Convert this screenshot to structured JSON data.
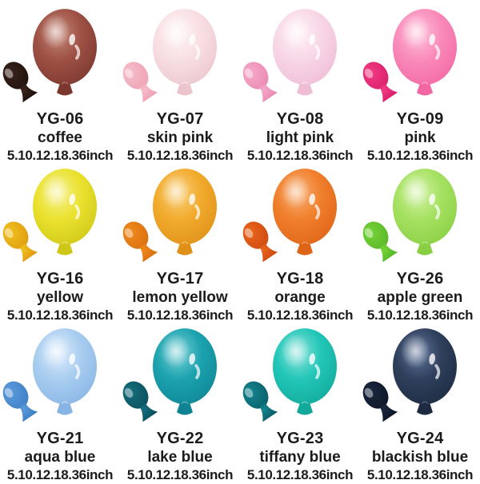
{
  "page": {
    "background": "#ffffff",
    "text_color": "#1b1b1b"
  },
  "catalog": {
    "items": [
      {
        "code": "YG-06",
        "name": "coffee",
        "sizes": "5.10.12.18.36inch",
        "colors": {
          "body": "#9e5144",
          "edge": "#7b372e",
          "glow": "#c4897a",
          "small": "#3a231d",
          "small_edge": "#20110c"
        }
      },
      {
        "code": "YG-07",
        "name": "skin pink",
        "sizes": "5.10.12.18.36inch",
        "colors": {
          "body": "#f8dfe4",
          "edge": "#ecc4ce",
          "glow": "#fef5f6",
          "small": "#f7bec9",
          "small_edge": "#eda2b4"
        }
      },
      {
        "code": "YG-08",
        "name": "light pink",
        "sizes": "5.10.12.18.36inch",
        "colors": {
          "body": "#f8d7e6",
          "edge": "#efbcd6",
          "glow": "#fef2f7",
          "small": "#f5a9c8",
          "small_edge": "#eb8ab4"
        }
      },
      {
        "code": "YG-09",
        "name": "pink",
        "sizes": "5.10.12.18.36inch",
        "colors": {
          "body": "#f98bbb",
          "edge": "#f266a2",
          "glow": "#fdc3da",
          "small": "#f23a85",
          "small_edge": "#d81f6b"
        }
      },
      {
        "code": "YG-16",
        "name": "yellow",
        "sizes": "5.10.12.18.36inch",
        "colors": {
          "body": "#eae22e",
          "edge": "#cfc718",
          "glow": "#f6f08e",
          "small": "#eec31f",
          "small_edge": "#e09a10"
        }
      },
      {
        "code": "YG-17",
        "name": "lemon yellow",
        "sizes": "5.10.12.18.36inch",
        "colors": {
          "body": "#f2ab2d",
          "edge": "#de9018",
          "glow": "#f9d07e",
          "small": "#f08b1d",
          "small_edge": "#d96f10"
        }
      },
      {
        "code": "YG-18",
        "name": "orange",
        "sizes": "5.10.12.18.36inch",
        "colors": {
          "body": "#f07f2b",
          "edge": "#de6418",
          "glow": "#f8b078",
          "small": "#ea651c",
          "small_edge": "#cf4b10"
        }
      },
      {
        "code": "YG-26",
        "name": "apple green",
        "sizes": "5.10.12.18.36inch",
        "colors": {
          "body": "#a6e162",
          "edge": "#88cf43",
          "glow": "#d2f2a6",
          "small": "#78d43a",
          "small_edge": "#58b728"
        }
      },
      {
        "code": "YG-21",
        "name": "aqua blue",
        "sizes": "5.10.12.18.36inch",
        "colors": {
          "body": "#a9cdf0",
          "edge": "#87b4e4",
          "glow": "#dcecfb",
          "small": "#5b9bdc",
          "small_edge": "#3f7fc4"
        }
      },
      {
        "code": "YG-22",
        "name": "lake blue",
        "sizes": "5.10.12.18.36inch",
        "colors": {
          "body": "#1ca3af",
          "edge": "#0e8493",
          "glow": "#7bd0d6",
          "small": "#166f7e",
          "small_edge": "#0a505d"
        }
      },
      {
        "code": "YG-23",
        "name": "tiffany blue",
        "sizes": "5.10.12.18.36inch",
        "colors": {
          "body": "#22c6b8",
          "edge": "#12a89a",
          "glow": "#8ce4da",
          "small": "#138691",
          "small_edge": "#0a5f68"
        }
      },
      {
        "code": "YG-24",
        "name": "blackish blue",
        "sizes": "5.10.12.18.36inch",
        "colors": {
          "body": "#2f405c",
          "edge": "#1d2a40",
          "glow": "#60759a",
          "small": "#1b2840",
          "small_edge": "#0e1626"
        }
      }
    ]
  }
}
